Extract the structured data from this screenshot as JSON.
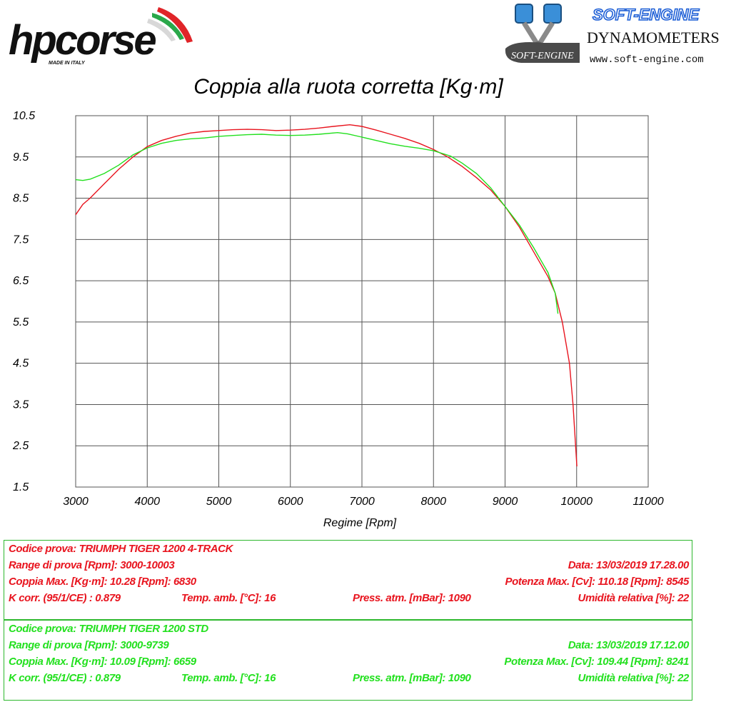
{
  "header": {
    "brand_left": "hpcorse",
    "brand_left_tagline": "MADE IN ITALY",
    "brand_right_top": "SOFT-ENGINE",
    "brand_right_mid": "DYNAMOMETERS",
    "brand_right_small": "SOFT-ENGINE",
    "brand_right_url": "www.soft-engine.com"
  },
  "chart_data": {
    "type": "line",
    "title": "Coppia alla ruota corretta [Kg·m]",
    "xlabel": "Regime [Rpm]",
    "ylabel": "",
    "xlim": [
      3000,
      11000
    ],
    "ylim": [
      1.5,
      10.5
    ],
    "xticks": [
      "3000",
      "4000",
      "5000",
      "6000",
      "7000",
      "8000",
      "9000",
      "10000",
      "11000"
    ],
    "yticks": [
      "10.5",
      "9.5",
      "8.5",
      "7.5",
      "6.5",
      "5.5",
      "4.5",
      "3.5",
      "2.5",
      "1.5"
    ],
    "grid": true,
    "colors": {
      "red": "#e8141e",
      "green": "#22e01e",
      "grid": "#555555"
    },
    "series": [
      {
        "color": "#e8141e",
        "x": [
          3000,
          3100,
          3200,
          3400,
          3600,
          3800,
          4000,
          4200,
          4400,
          4600,
          4800,
          5000,
          5200,
          5400,
          5600,
          5800,
          6000,
          6200,
          6400,
          6600,
          6830,
          7000,
          7200,
          7400,
          7600,
          7800,
          8000,
          8200,
          8400,
          8600,
          8800,
          9000,
          9200,
          9400,
          9600,
          9700,
          9800,
          9900,
          9950,
          10003
        ],
        "values": [
          8.1,
          8.35,
          8.5,
          8.85,
          9.2,
          9.5,
          9.75,
          9.9,
          10.0,
          10.08,
          10.12,
          10.14,
          10.16,
          10.17,
          10.16,
          10.14,
          10.15,
          10.17,
          10.2,
          10.24,
          10.28,
          10.24,
          10.15,
          10.05,
          9.95,
          9.83,
          9.68,
          9.5,
          9.27,
          9.0,
          8.7,
          8.3,
          7.8,
          7.2,
          6.6,
          6.2,
          5.5,
          4.5,
          3.5,
          2.0
        ]
      },
      {
        "color": "#22e01e",
        "x": [
          3000,
          3100,
          3200,
          3400,
          3600,
          3800,
          4000,
          4200,
          4400,
          4600,
          4800,
          5000,
          5200,
          5400,
          5600,
          5800,
          6000,
          6200,
          6400,
          6659,
          6800,
          7000,
          7200,
          7400,
          7600,
          7800,
          8000,
          8241,
          8400,
          8600,
          8800,
          9000,
          9200,
          9400,
          9600,
          9700,
          9739
        ],
        "values": [
          8.95,
          8.93,
          8.96,
          9.1,
          9.3,
          9.55,
          9.72,
          9.83,
          9.9,
          9.94,
          9.96,
          10.0,
          10.02,
          10.04,
          10.05,
          10.03,
          10.02,
          10.03,
          10.05,
          10.09,
          10.06,
          9.98,
          9.9,
          9.82,
          9.76,
          9.71,
          9.65,
          9.52,
          9.35,
          9.1,
          8.75,
          8.3,
          7.85,
          7.3,
          6.7,
          6.2,
          5.7
        ]
      }
    ]
  },
  "tests": [
    {
      "codice": "Codice prova: TRIUMPH TIGER 1200 4-TRACK",
      "range": "Range di prova [Rpm]: 3000-10003",
      "data": "Data: 13/03/2019   17.28.00",
      "coppia": "Coppia Max. [Kg·m]: 10.28   [Rpm]: 6830",
      "potenza": "Potenza Max. [Cv]: 110.18   [Rpm]: 8545",
      "kcorr": "K corr. (95/1/CE) : 0.879",
      "temp": "Temp. amb. [°C]: 16",
      "press": "Press. atm. [mBar]: 1090",
      "umidita": "Umidità relativa [%]: 22"
    },
    {
      "codice": "Codice prova: TRIUMPH TIGER 1200 STD",
      "range": "Range di prova [Rpm]: 3000-9739",
      "data": "Data: 13/03/2019   17.12.00",
      "coppia": "Coppia Max. [Kg·m]: 10.09   [Rpm]: 6659",
      "potenza": "Potenza Max. [Cv]: 109.44   [Rpm]: 8241",
      "kcorr": "K corr. (95/1/CE) : 0.879",
      "temp": "Temp. amb. [°C]: 16",
      "press": "Press. atm. [mBar]: 1090",
      "umidita": "Umidità relativa [%]: 22"
    }
  ]
}
